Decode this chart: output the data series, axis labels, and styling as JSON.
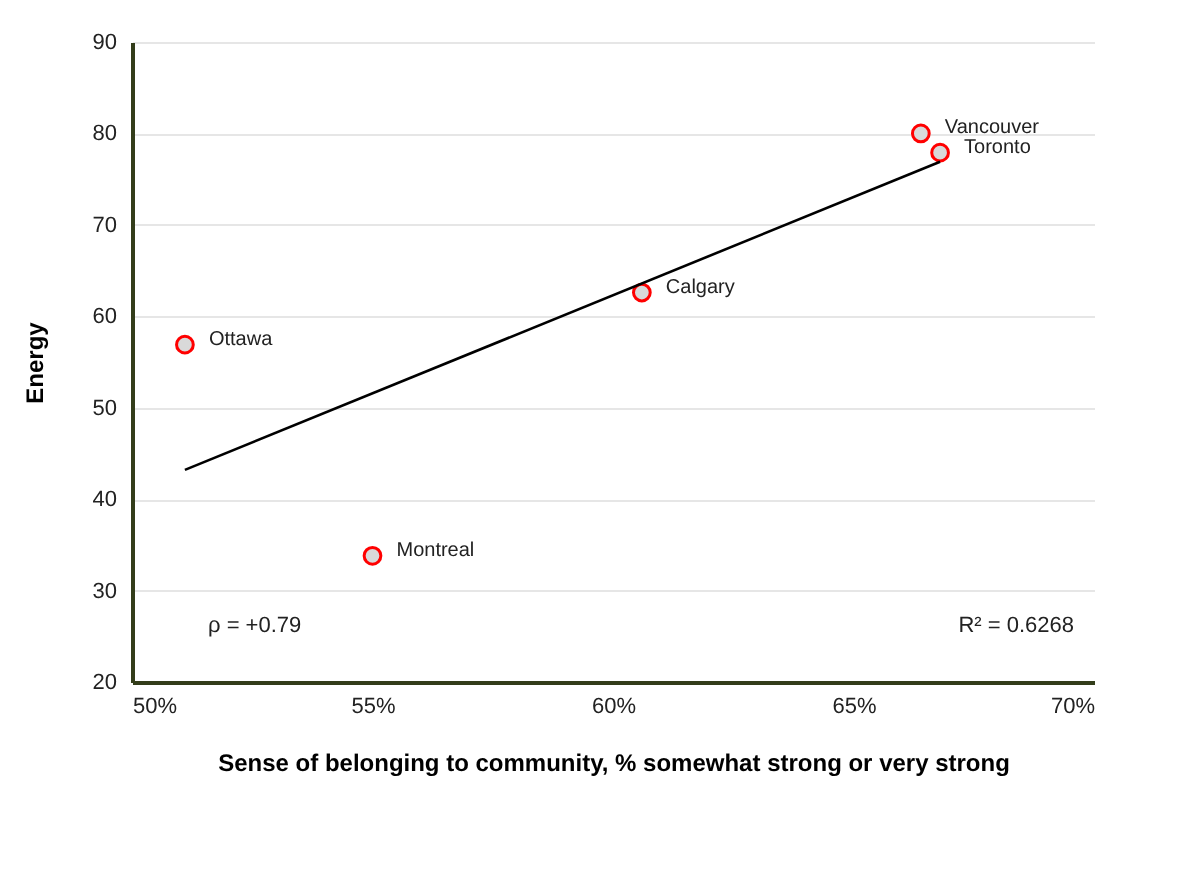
{
  "chart_data": {
    "type": "scatter",
    "xlabel": "Sense of belonging to community, % somewhat strong or very strong",
    "ylabel": "Energy",
    "xlim": [
      50,
      70
    ],
    "xticks": [
      {
        "value": 50,
        "label": "50%"
      },
      {
        "value": 55,
        "label": "55%"
      },
      {
        "value": 60,
        "label": "60%"
      },
      {
        "value": 65,
        "label": "65%"
      },
      {
        "value": 70,
        "label": "70%"
      }
    ],
    "ylim": [
      20,
      90
    ],
    "yticks": [
      20,
      30,
      40,
      50,
      60,
      70,
      80,
      90
    ],
    "grid": "y",
    "marker": "circle",
    "series": [
      {
        "color": "#ff0000",
        "x": [
          51.1,
          55.0,
          60.6,
          66.4,
          66.8
        ],
        "values": [
          56.9,
          33.8,
          62.6,
          80.0,
          77.9
        ]
      },
      {
        "type": "line",
        "marker": "none",
        "line_style": "solid",
        "color": "#000000",
        "x": [
          51.1,
          66.8
        ],
        "values": [
          43.2,
          76.9
        ]
      }
    ],
    "annotations": [
      {
        "text": "Ottawa",
        "x": 51.1,
        "y": 56.9
      },
      {
        "text": "Montreal",
        "x": 55.0,
        "y": 33.8
      },
      {
        "text": "Calgary",
        "x": 60.6,
        "y": 62.6
      },
      {
        "text": "Vancouver",
        "x": 66.4,
        "y": 80.0
      },
      {
        "text": "Toronto",
        "x": 66.8,
        "y": 77.9
      },
      "ρ = +0.79",
      "R² = 0.6268"
    ]
  }
}
